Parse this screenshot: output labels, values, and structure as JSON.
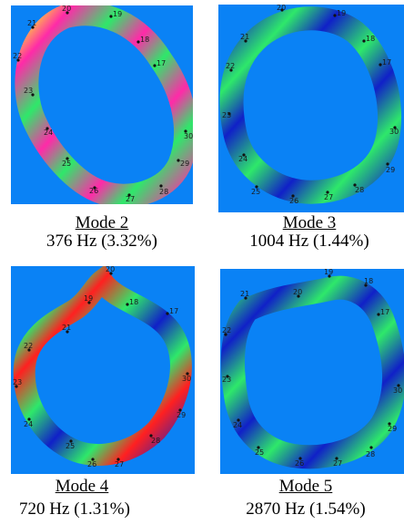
{
  "modes": [
    {
      "title": "Mode 2",
      "freq": "376 Hz (3.32%)"
    },
    {
      "title": "Mode 3",
      "freq": "1004 Hz (1.44%)"
    },
    {
      "title": "Mode 4",
      "freq": "720 Hz (1.31%)"
    },
    {
      "title": "Mode 5",
      "freq": "2870 Hz (1.54%)"
    }
  ],
  "node_labels": {
    "mode2": [
      "20",
      "19",
      "18",
      "17",
      "21",
      "22",
      "23",
      "24",
      "25",
      "26",
      "27",
      "28",
      "29",
      "30"
    ],
    "mode3": [
      "20",
      "19",
      "18",
      "17",
      "21",
      "22",
      "23",
      "24",
      "25",
      "26",
      "27",
      "28",
      "29",
      "30"
    ],
    "mode4": [
      "20",
      "19",
      "18",
      "17",
      "21",
      "22",
      "23",
      "24",
      "25",
      "26",
      "27",
      "28",
      "29",
      "30"
    ],
    "mode5": [
      "20",
      "19",
      "18",
      "17",
      "21",
      "22",
      "23",
      "24",
      "25",
      "26",
      "27",
      "28",
      "29",
      "30"
    ]
  },
  "colors": {
    "background": "#0a82f5",
    "magenta": "#ff2aa8",
    "green": "#2ee86a",
    "blue": "#1020c8",
    "yellow": "#ffff20",
    "red": "#ff2020"
  }
}
